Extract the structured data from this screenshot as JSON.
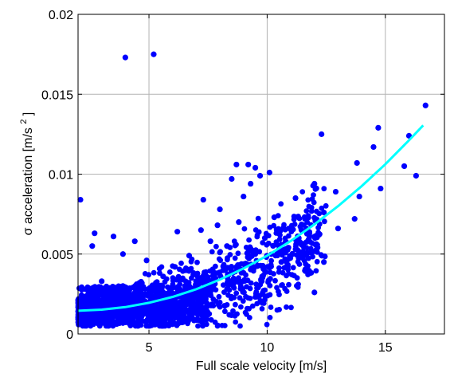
{
  "chart_data": {
    "type": "scatter",
    "title": "",
    "xlabel": "Full scale velocity [m/s]",
    "ylabel": "σ acceleration [m/s²]",
    "ylabel_parts": {
      "sigma": "σ",
      "text": "acceleration [m/s",
      "sup": "2",
      "close": "]"
    },
    "xlim": [
      2,
      17.5
    ],
    "ylim": [
      0,
      0.02
    ],
    "grid": true,
    "xticks": [
      5,
      10,
      15
    ],
    "xtick_labels": [
      "5",
      "10",
      "15"
    ],
    "yticks": [
      0,
      0.005,
      0.01,
      0.015,
      0.02
    ],
    "ytick_labels": [
      "0",
      "0.005",
      "0.01",
      "0.015",
      "0.02"
    ],
    "colors": {
      "points": "#0000ff",
      "fit": "#00ffff",
      "grid": "#b3b3b3",
      "axes": "#000000"
    },
    "series": [
      {
        "type": "scatter",
        "points": [
          [
            2.1,
            0.0084
          ],
          [
            4.0,
            0.0173
          ],
          [
            5.2,
            0.0175
          ],
          [
            12.3,
            0.0125
          ],
          [
            16.7,
            0.0143
          ],
          [
            14.7,
            0.0129
          ],
          [
            16.0,
            0.0124
          ],
          [
            14.5,
            0.0117
          ],
          [
            16.3,
            0.0099
          ],
          [
            15.8,
            0.0105
          ],
          [
            13.8,
            0.0107
          ],
          [
            14.8,
            0.0091
          ],
          [
            13.9,
            0.0086
          ],
          [
            13.7,
            0.0072
          ],
          [
            12.9,
            0.0089
          ],
          [
            12.0,
            0.0094
          ],
          [
            12.4,
            0.0076
          ],
          [
            11.2,
            0.0085
          ],
          [
            11.6,
            0.0072
          ],
          [
            13.0,
            0.0066
          ],
          [
            11.7,
            0.0051
          ],
          [
            12.4,
            0.0045
          ],
          [
            10.9,
            0.0054
          ],
          [
            12.0,
            0.0026
          ],
          [
            8.7,
            0.0106
          ],
          [
            9.2,
            0.0106
          ],
          [
            9.5,
            0.0104
          ],
          [
            9.7,
            0.0099
          ],
          [
            10.1,
            0.0101
          ],
          [
            9.3,
            0.0094
          ],
          [
            8.5,
            0.0097
          ],
          [
            7.3,
            0.0084
          ],
          [
            8.0,
            0.0078
          ],
          [
            9.0,
            0.0086
          ],
          [
            7.9,
            0.0068
          ],
          [
            7.2,
            0.0065
          ],
          [
            6.2,
            0.0064
          ],
          [
            3.5,
            0.0061
          ],
          [
            2.7,
            0.0063
          ],
          [
            7.2,
            0.0025
          ],
          [
            8.4,
            0.0012
          ],
          [
            6.5,
            0.0026
          ],
          [
            5.1,
            0.001
          ],
          [
            4.6,
            0.0032
          ],
          [
            3.0,
            0.0033
          ],
          [
            5.6,
            0.0036
          ],
          [
            6.1,
            0.0042
          ],
          [
            9.5,
            0.005
          ],
          [
            10.6,
            0.0045
          ],
          [
            11.3,
            0.0058
          ],
          [
            9.9,
            0.006
          ],
          [
            8.3,
            0.0055
          ],
          [
            2.6,
            0.0055
          ],
          [
            3.9,
            0.005
          ],
          [
            4.4,
            0.0058
          ],
          [
            4.9,
            0.0046
          ],
          [
            6.7,
            0.0049
          ],
          [
            7.6,
            0.0058
          ],
          [
            8.8,
            0.007
          ],
          [
            10.3,
            0.0073
          ]
        ]
      },
      {
        "type": "line",
        "name": "",
        "points": [
          [
            2.0,
            0.00145
          ],
          [
            3.0,
            0.00152
          ],
          [
            4.0,
            0.00168
          ],
          [
            5.0,
            0.00195
          ],
          [
            6.0,
            0.00232
          ],
          [
            7.0,
            0.0028
          ],
          [
            8.0,
            0.0034
          ],
          [
            9.0,
            0.0041
          ],
          [
            10.0,
            0.0049
          ],
          [
            11.0,
            0.00582
          ],
          [
            12.0,
            0.00686
          ],
          [
            13.0,
            0.008
          ],
          [
            14.0,
            0.00925
          ],
          [
            15.0,
            0.01062
          ],
          [
            16.0,
            0.01212
          ],
          [
            16.6,
            0.01305
          ]
        ]
      }
    ],
    "dense_cloud_note": ""
  }
}
